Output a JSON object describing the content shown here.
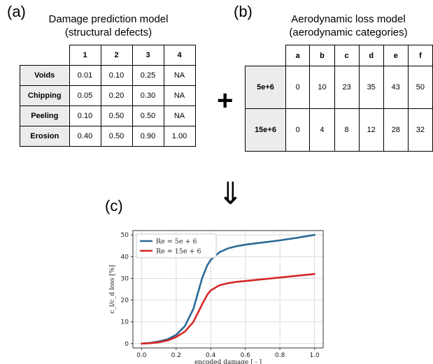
{
  "panel_a": {
    "letter": "(a)",
    "title_line1": "Damage prediction model",
    "title_line2": "(structural defects)",
    "columns": [
      "1",
      "2",
      "3",
      "4"
    ],
    "rows": [
      {
        "label": "Voids",
        "values": [
          "0.01",
          "0.10",
          "0.25",
          "NA"
        ]
      },
      {
        "label": "Chipping",
        "values": [
          "0.05",
          "0.20",
          "0.30",
          "NA"
        ]
      },
      {
        "label": "Peeling",
        "values": [
          "0.10",
          "0.50",
          "0.50",
          "NA"
        ]
      },
      {
        "label": "Erosion",
        "values": [
          "0.40",
          "0.50",
          "0.90",
          "1.00"
        ]
      }
    ]
  },
  "panel_b": {
    "letter": "(b)",
    "title_line1": "Aerodynamic loss model",
    "title_line2": "(aerodynamic categories)",
    "columns": [
      "a",
      "b",
      "c",
      "d",
      "e",
      "f"
    ],
    "rows": [
      {
        "label": "5e+6",
        "values": [
          "0",
          "10",
          "23",
          "35",
          "43",
          "50"
        ]
      },
      {
        "label": "15e+6",
        "values": [
          "0",
          "4",
          "8",
          "12",
          "28",
          "32"
        ]
      }
    ]
  },
  "operator_plus": "+",
  "operator_arrow": "⇓",
  "panel_c": {
    "letter": "(c)",
    "chart_data": {
      "type": "line",
      "title": "",
      "xlabel": "encoded damage [ - ]",
      "ylabel": "c_l/c_d loss [%]",
      "xlim": [
        -0.05,
        1.05
      ],
      "ylim": [
        -2,
        52
      ],
      "xticks": [
        "0.0",
        "0.2",
        "0.4",
        "0.6",
        "0.8",
        "1.0"
      ],
      "yticks": [
        "0",
        "10",
        "20",
        "30",
        "40",
        "50"
      ],
      "grid": true,
      "legend_position": "top-left",
      "series": [
        {
          "name": "Re = 5e + 6",
          "color": "#2b6a96",
          "x": [
            0.0,
            0.05,
            0.1,
            0.15,
            0.2,
            0.25,
            0.3,
            0.35,
            0.38,
            0.4,
            0.45,
            0.5,
            0.55,
            0.6,
            0.7,
            0.8,
            0.9,
            1.0
          ],
          "y": [
            0.0,
            0.3,
            1.0,
            2.0,
            4.0,
            8.0,
            16.0,
            30.0,
            36.0,
            38.5,
            42.0,
            43.8,
            44.8,
            45.5,
            46.5,
            47.5,
            48.7,
            50.0
          ]
        },
        {
          "name": "Re = 15e + 6",
          "color": "#d62728",
          "x": [
            0.0,
            0.05,
            0.1,
            0.15,
            0.2,
            0.25,
            0.3,
            0.35,
            0.38,
            0.4,
            0.45,
            0.5,
            0.55,
            0.6,
            0.7,
            0.8,
            0.9,
            1.0
          ],
          "y": [
            0.0,
            0.2,
            0.6,
            1.4,
            3.0,
            5.5,
            10.0,
            18.0,
            22.5,
            24.5,
            26.8,
            27.8,
            28.4,
            28.8,
            29.6,
            30.4,
            31.2,
            32.0
          ]
        }
      ]
    }
  }
}
